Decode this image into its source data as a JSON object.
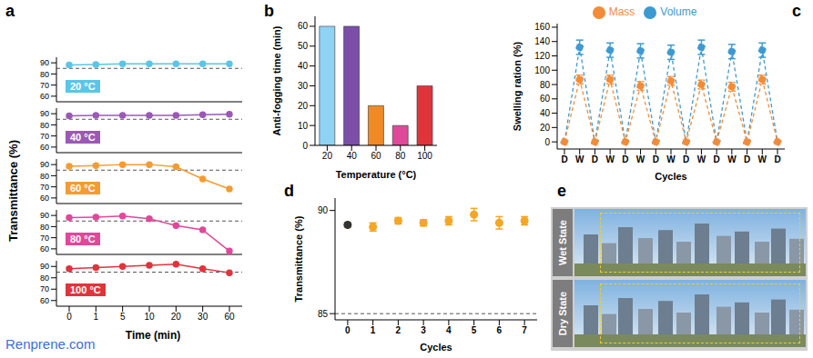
{
  "watermark": "Renprene.com",
  "chart_data": [
    {
      "title": "a",
      "type": "line",
      "x_label": "Time (min)",
      "y_label": "Transmittance (%)",
      "categories": [
        "0",
        "1",
        "5",
        "10",
        "20",
        "30",
        "60"
      ],
      "series": [
        {
          "name": "20 °C",
          "color": "#5bc5e8",
          "values": [
            88,
            88.5,
            89,
            89,
            89,
            89,
            89
          ]
        },
        {
          "name": "40 °C",
          "color": "#9b59b6",
          "values": [
            88,
            88.5,
            88.5,
            88.5,
            88.5,
            89,
            89.5
          ]
        },
        {
          "name": "60 °C",
          "color": "#f39c33",
          "values": [
            88.5,
            89,
            90,
            90,
            88,
            77,
            68
          ]
        },
        {
          "name": "80 °C",
          "color": "#e0489a",
          "values": [
            88,
            88.5,
            89.5,
            87,
            81,
            77,
            58
          ]
        },
        {
          "name": "100 °C",
          "color": "#e0343c",
          "values": [
            88,
            89,
            90,
            91,
            92,
            88,
            84.5
          ]
        }
      ],
      "ylim": [
        55,
        95
      ],
      "yticks": [
        60,
        70,
        80,
        90
      ],
      "threshold": 85,
      "marker": "circle"
    },
    {
      "title": "b",
      "type": "bar",
      "x_label": "Temperature (°C)",
      "y_label": "Anti-fogging time (min)",
      "categories": [
        "20",
        "40",
        "60",
        "80",
        "100"
      ],
      "values": [
        60,
        60,
        20,
        10,
        30
      ],
      "colors": [
        "#8fd3f4",
        "#7b4fa8",
        "#f08a24",
        "#e0489a",
        "#e0343c"
      ],
      "ylim": [
        0,
        65
      ],
      "yticks": [
        0,
        10,
        20,
        30,
        40,
        50,
        60
      ]
    },
    {
      "title": "c",
      "type": "line",
      "x_label": "Cycles",
      "y_label": "Swelling ration (%)",
      "categories": [
        "D",
        "W",
        "D",
        "W",
        "D",
        "W",
        "D",
        "W",
        "D",
        "W",
        "D",
        "W",
        "D",
        "W",
        "D"
      ],
      "series": [
        {
          "name": "Volume",
          "color": "#3d9ad1",
          "values": [
            0,
            132,
            0,
            128,
            0,
            127,
            0,
            125,
            0,
            132,
            0,
            126,
            0,
            128,
            0
          ],
          "errors": [
            3,
            10,
            3,
            10,
            3,
            10,
            3,
            10,
            3,
            10,
            3,
            10,
            3,
            10,
            3
          ]
        },
        {
          "name": "Mass",
          "color": "#f28c38",
          "values": [
            0,
            87,
            0,
            87,
            0,
            78,
            0,
            85,
            0,
            80,
            0,
            77,
            0,
            87,
            0
          ],
          "errors": [
            2,
            6,
            2,
            6,
            2,
            6,
            2,
            6,
            2,
            6,
            2,
            6,
            2,
            6,
            2
          ]
        }
      ],
      "ylim": [
        -10,
        165
      ],
      "yticks": [
        0,
        20,
        40,
        60,
        80,
        100,
        120,
        140,
        160
      ],
      "legend": "top",
      "marker": "circle",
      "line_style": "dashed"
    },
    {
      "title": "d",
      "type": "scatter",
      "x_label": "Cycles",
      "y_label": "Transmittance (%)",
      "x": [
        0,
        1,
        2,
        3,
        4,
        5,
        6,
        7
      ],
      "values": [
        89.3,
        89.2,
        89.5,
        89.4,
        89.5,
        89.8,
        89.4,
        89.5
      ],
      "errors": [
        0.1,
        0.2,
        0.15,
        0.15,
        0.2,
        0.3,
        0.3,
        0.2
      ],
      "colors": [
        "#333333",
        "#f5a623",
        "#f5a623",
        "#f5a623",
        "#f5a623",
        "#f5a623",
        "#f5a623",
        "#f5a623"
      ],
      "xlim": [
        -0.5,
        7.5
      ],
      "xticks": [
        0,
        1,
        2,
        3,
        4,
        5,
        6,
        7
      ],
      "ylim": [
        84.7,
        90.6
      ],
      "yticks": [
        85,
        90
      ],
      "threshold": 85
    },
    {
      "title": "e",
      "type": "image",
      "labels": [
        "Wet State",
        "Dry State"
      ]
    }
  ]
}
